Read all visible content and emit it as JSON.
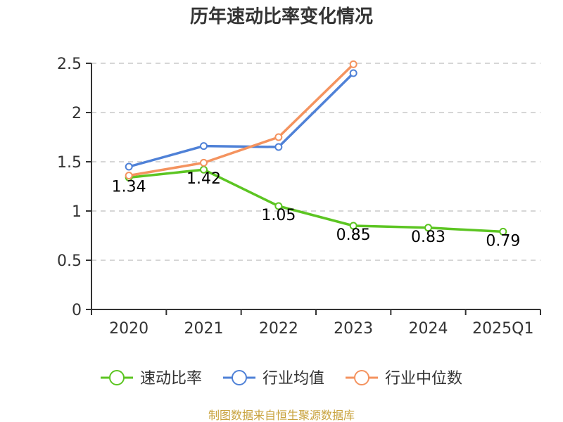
{
  "chart_data": {
    "type": "line",
    "title": "历年速动比率变化情况",
    "categories": [
      "2020",
      "2021",
      "2022",
      "2023",
      "2024",
      "2025Q1"
    ],
    "yticks": [
      "0",
      "0.5",
      "1",
      "1.5",
      "2",
      "2.5"
    ],
    "ylim": [
      0,
      2.5
    ],
    "grid": true,
    "legend_position": "bottom",
    "series": [
      {
        "name": "速动比率",
        "color": "#5cc522",
        "values": [
          1.34,
          1.42,
          1.05,
          0.85,
          0.83,
          0.79
        ],
        "labels": [
          "1.34",
          "1.42",
          "1.05",
          "0.85",
          "0.83",
          "0.79"
        ]
      },
      {
        "name": "行业均值",
        "color": "#4f81d7",
        "values": [
          1.45,
          1.66,
          1.65,
          2.4,
          null,
          null
        ]
      },
      {
        "name": "行业中位数",
        "color": "#f4935f",
        "values": [
          1.36,
          1.49,
          1.75,
          2.49,
          null,
          null
        ]
      }
    ]
  },
  "source": "制图数据来自恒生聚源数据库"
}
